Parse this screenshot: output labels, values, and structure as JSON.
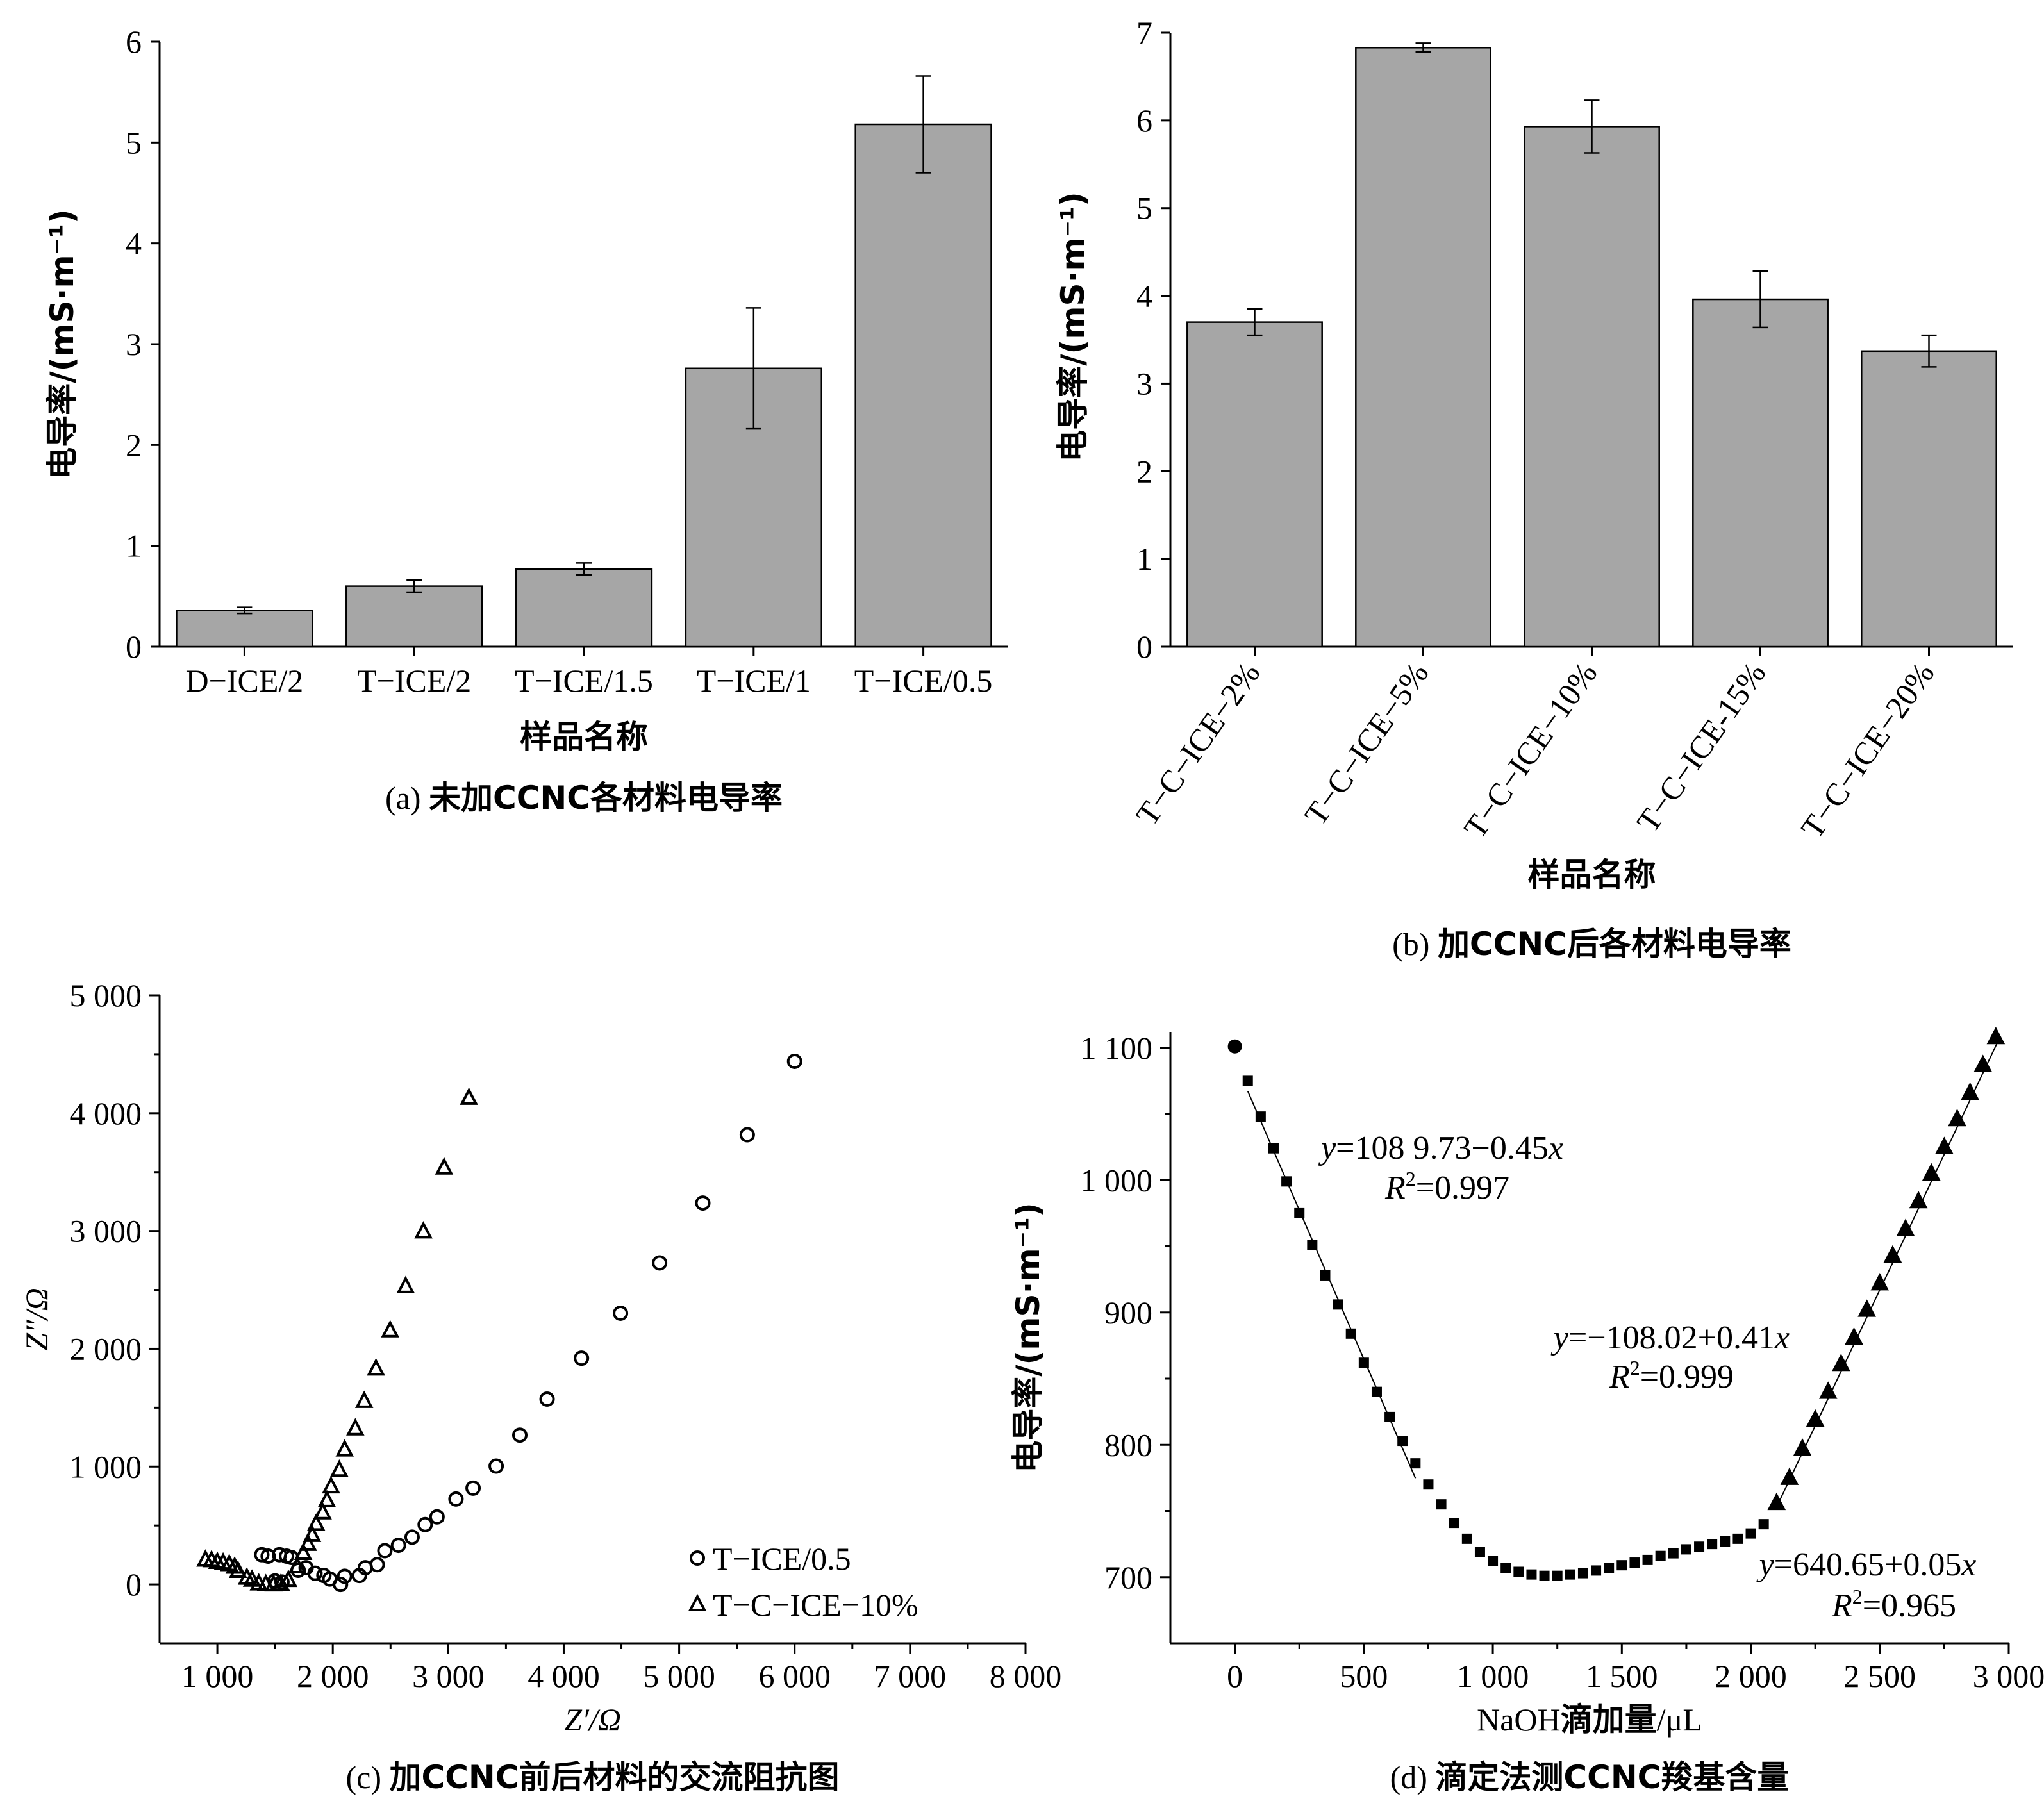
{
  "colors": {
    "bar_fill": "#a6a6a6",
    "ink": "#000000"
  },
  "chart_data": [
    {
      "id": "a",
      "type": "bar",
      "caption_prefix": "(a) ",
      "caption": "未加CCNC各材料电导率",
      "xlabel": "样品名称",
      "ylabel": "电导率/(mS·m⁻¹)",
      "ylim": [
        0,
        6
      ],
      "yticks": [
        "0",
        "1",
        "2",
        "3",
        "4",
        "5",
        "6"
      ],
      "categories": [
        "D−ICE/2",
        "T−ICE/2",
        "T−ICE/1.5",
        "T−ICE/1",
        "T−ICE/0.5"
      ],
      "values": [
        0.36,
        0.6,
        0.77,
        2.76,
        5.18
      ],
      "errors": [
        0.03,
        0.06,
        0.06,
        0.6,
        0.48
      ],
      "grid": false
    },
    {
      "id": "b",
      "type": "bar",
      "caption_prefix": "(b) ",
      "caption": "加CCNC后各材料电导率",
      "xlabel": "样品名称",
      "ylabel": "电导率/(mS·m⁻¹)",
      "ylim": [
        0,
        7
      ],
      "yticks": [
        "0",
        "1",
        "2",
        "3",
        "4",
        "5",
        "6",
        "7"
      ],
      "categories": [
        "T−C−ICE−2%",
        "T−C−ICE−5%",
        "T−C−ICE−10%",
        "T−C−ICE-15%",
        "T−C−ICE−20%"
      ],
      "values": [
        3.7,
        6.83,
        5.93,
        3.96,
        3.37
      ],
      "errors": [
        0.15,
        0.05,
        0.3,
        0.32,
        0.18
      ],
      "grid": false
    },
    {
      "id": "c",
      "type": "scatter",
      "caption_prefix": "(c) ",
      "caption": "加CCNC前后材料的交流阻抗图",
      "xlabel": "Z′/Ω",
      "ylabel": "Z″/Ω",
      "xlim": [
        500,
        8000
      ],
      "ylim": [
        -500,
        5000
      ],
      "xticks": [
        {
          "v": 1000,
          "l": "1 000"
        },
        {
          "v": 2000,
          "l": "2 000"
        },
        {
          "v": 3000,
          "l": "3 000"
        },
        {
          "v": 4000,
          "l": "4 000"
        },
        {
          "v": 5000,
          "l": "5 000"
        },
        {
          "v": 6000,
          "l": "6 000"
        },
        {
          "v": 7000,
          "l": "7 000"
        },
        {
          "v": 8000,
          "l": "8 000"
        }
      ],
      "yticks": [
        {
          "v": 0,
          "l": "0"
        },
        {
          "v": 1000,
          "l": "1 000"
        },
        {
          "v": 2000,
          "l": "2 000"
        },
        {
          "v": 3000,
          "l": "3 000"
        },
        {
          "v": 4000,
          "l": "4 000"
        },
        {
          "v": 5000,
          "l": "5 000"
        }
      ],
      "legend_position": "bottom-right",
      "series": [
        {
          "name": "T−ICE/0.5",
          "marker": "circle",
          "x": [
            1385,
            1440,
            1500,
            1538,
            1560,
            1600,
            1641,
            1700,
            1769,
            1846,
            1923,
            1974,
            2067,
            2103,
            2231,
            2282,
            2385,
            2451,
            2569,
            2687,
            2800,
            2903,
            3067,
            3215,
            3415,
            3620,
            3856,
            4154,
            4492,
            4831,
            5205,
            5590,
            6000
          ],
          "y": [
            252,
            240,
            30,
            252,
            20,
            240,
            229,
            120,
            141,
            95,
            76,
            46,
            0,
            69,
            76,
            141,
            168,
            286,
            332,
            401,
            508,
            573,
            725,
            817,
            1004,
            1267,
            1573,
            1920,
            2302,
            2729,
            3237,
            3817,
            4440
          ]
        },
        {
          "name": "T−C−ICE−10%",
          "marker": "triangle",
          "x": [
            897,
            950,
            1000,
            1050,
            1103,
            1150,
            1179,
            1256,
            1300,
            1359,
            1420,
            1487,
            1550,
            1615,
            1692,
            1744,
            1785,
            1821,
            1856,
            1913,
            1949,
            1985,
            2056,
            2103,
            2195,
            2272,
            2374,
            2497,
            2631,
            2785,
            2964,
            3179
          ],
          "y": [
            210,
            205,
            191,
            185,
            172,
            150,
            115,
            57,
            40,
            8,
            2,
            0,
            5,
            38,
            153,
            267,
            344,
            420,
            515,
            611,
            714,
            832,
            973,
            1145,
            1324,
            1557,
            1832,
            2156,
            2531,
            2996,
            3538,
            4130
          ]
        }
      ]
    },
    {
      "id": "d",
      "type": "scatter",
      "caption_prefix": "(d) ",
      "caption": "滴定法测CCNC羧基含量",
      "xlabel_prefix": "NaOH",
      "xlabel_cn": "滴加量",
      "xlabel_suffix": "/μL",
      "ylabel": "电导率/(mS·m⁻¹)",
      "xlim": [
        -250,
        3000
      ],
      "ylim": [
        650,
        1112
      ],
      "xticks": [
        {
          "v": 0,
          "l": "0"
        },
        {
          "v": 500,
          "l": "500"
        },
        {
          "v": 1000,
          "l": "1 000"
        },
        {
          "v": 1500,
          "l": "1 500"
        },
        {
          "v": 2000,
          "l": "2 000"
        },
        {
          "v": 2500,
          "l": "2 500"
        },
        {
          "v": 3000,
          "l": "3 000"
        }
      ],
      "yticks": [
        {
          "v": 700,
          "l": "700"
        },
        {
          "v": 800,
          "l": "800"
        },
        {
          "v": 900,
          "l": "900"
        },
        {
          "v": 1000,
          "l": "1 000"
        },
        {
          "v": 1100,
          "l": "1 100"
        }
      ],
      "series": [
        {
          "marker": "circle",
          "x": [
            0
          ],
          "y": [
            1101
          ]
        },
        {
          "marker": "square",
          "x": [
            50,
            100,
            150,
            200,
            250,
            300,
            350,
            400,
            450,
            500,
            550,
            600,
            650,
            700,
            750,
            800,
            850,
            900,
            950,
            1000,
            1050,
            1100,
            1150,
            1200,
            1250,
            1300,
            1350,
            1400,
            1450,
            1500,
            1550,
            1600,
            1650,
            1700,
            1750,
            1800,
            1850,
            1900,
            1950,
            2000,
            2050
          ],
          "y": [
            1075,
            1048,
            1024,
            999,
            975,
            951,
            928,
            906,
            884,
            862,
            840,
            821,
            803,
            786,
            770,
            755,
            741,
            729,
            719,
            712,
            707,
            704,
            702,
            701,
            701,
            702,
            703,
            705,
            707,
            709,
            711,
            713,
            716,
            718,
            721,
            723,
            725,
            727,
            729,
            733,
            740
          ]
        },
        {
          "marker": "triangle",
          "x": [
            2100,
            2150,
            2200,
            2250,
            2300,
            2350,
            2400,
            2450,
            2500,
            2550,
            2600,
            2650,
            2700,
            2750,
            2800,
            2850,
            2900,
            2950
          ],
          "y": [
            756,
            775,
            797,
            819,
            840,
            861,
            881,
            902,
            922,
            943,
            963,
            984,
            1005,
            1025,
            1046,
            1066,
            1087,
            1108
          ]
        }
      ],
      "fits": [
        {
          "intercept": 1089.73,
          "slope": -0.45,
          "x_range": [
            50,
            700
          ],
          "eq_y": "y",
          "eq_rhs": "=108 9.73−0.45",
          "eq_x": "x",
          "r2_label": "R",
          "r2_sup": "2",
          "r2_value": "=0.997"
        },
        {
          "intercept": -108.02,
          "slope": 0.41,
          "x_range": [
            2100,
            2960
          ],
          "eq_y": "y",
          "eq_rhs": "=−108.02+0.41",
          "eq_x": "x",
          "r2_label": "R",
          "r2_sup": "2",
          "r2_value": "=0.999"
        },
        {
          "intercept": 640.65,
          "slope": 0.05,
          "x_range": null,
          "eq_y": "y",
          "eq_rhs": "=640.65+0.05",
          "eq_x": "x",
          "r2_label": "R",
          "r2_sup": "2",
          "r2_value": "=0.965"
        }
      ]
    }
  ]
}
